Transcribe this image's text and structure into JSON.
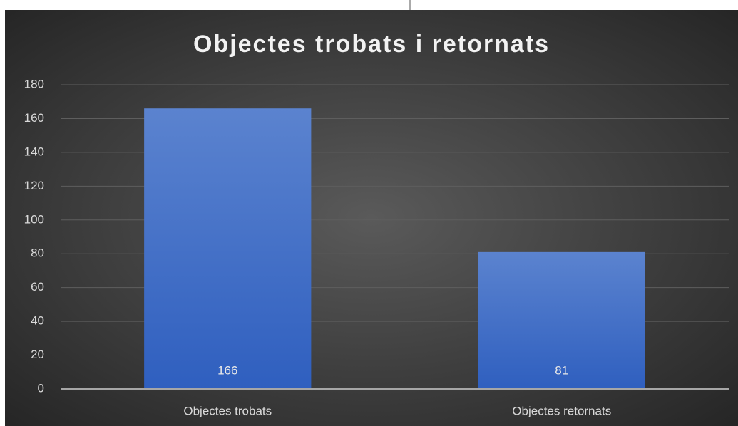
{
  "chart_data": {
    "type": "bar",
    "title": "Objectes trobats i retornats",
    "categories": [
      "Objectes trobats",
      "Objectes retornats"
    ],
    "values": [
      166,
      81
    ],
    "color": "#4472c4",
    "ylim": [
      0,
      180
    ],
    "yticks": [
      0,
      20,
      40,
      60,
      80,
      100,
      120,
      140,
      160,
      180
    ],
    "grid": true,
    "data_labels": true
  }
}
